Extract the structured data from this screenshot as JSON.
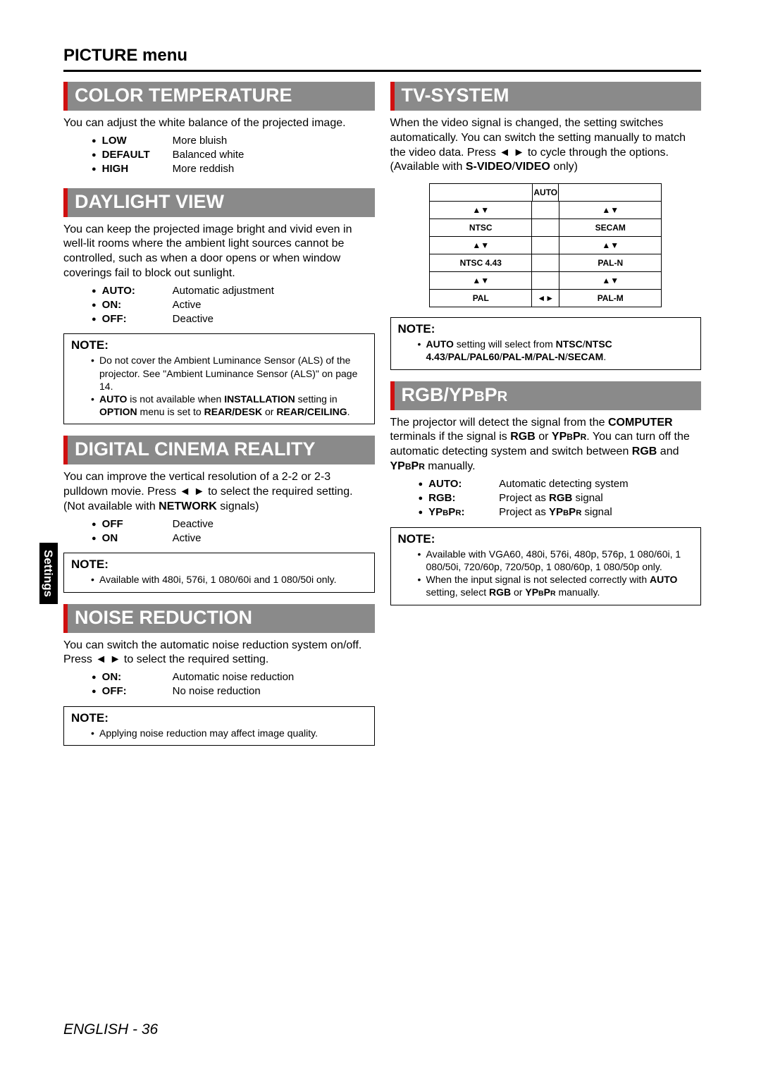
{
  "page_title": "PICTURE menu",
  "sidebar_label": "Settings",
  "footer": {
    "lang": "ENGLISH",
    "sep": " - ",
    "page": "36"
  },
  "left": {
    "color_temp": {
      "header": "COLOR TEMPERATURE",
      "desc": "You can adjust the white balance of the projected image.",
      "items": [
        {
          "term": "LOW",
          "desc": "More bluish"
        },
        {
          "term": "DEFAULT",
          "desc": "Balanced white"
        },
        {
          "term": "HIGH",
          "desc": "More reddish"
        }
      ]
    },
    "daylight": {
      "header": "DAYLIGHT VIEW",
      "desc": "You can keep the projected image bright and vivid even in well-lit rooms where the ambient light sources cannot be controlled, such as when a door opens or when window coverings fail to block out sunlight.",
      "items": [
        {
          "term": "AUTO:",
          "desc": "Automatic adjustment"
        },
        {
          "term": "ON:",
          "desc": "Active"
        },
        {
          "term": "OFF:",
          "desc": "Deactive"
        }
      ],
      "note_title": "NOTE:",
      "notes_html": [
        "Do not cover the Ambient Luminance Sensor (ALS) of the projector. See \"Ambient Luminance Sensor (ALS)\" on page 14.",
        "<b>AUTO</b> is not available when <b>INSTALLATION</b> setting in <b>OPTION</b> menu is set to <b>REAR/DESK</b> or <b>REAR/CEILING</b>."
      ]
    },
    "dcr": {
      "header": "DIGITAL CINEMA REALITY",
      "desc_html": "You can improve the vertical resolution of a 2-2 or 2-3 pulldown movie. Press ◄ ► to select the required setting. (Not available with <b>NETWORK</b> signals)",
      "items": [
        {
          "term": "OFF",
          "desc": "Deactive"
        },
        {
          "term": "ON",
          "desc": "Active"
        }
      ],
      "note_title": "NOTE:",
      "notes": [
        "Available with 480i, 576i, 1 080/60i and 1 080/50i only."
      ]
    },
    "nr": {
      "header": "NOISE REDUCTION",
      "desc": "You can switch the automatic noise reduction system on/off. Press ◄ ► to select the required setting.",
      "items": [
        {
          "term": "ON:",
          "desc": "Automatic noise reduction"
        },
        {
          "term": "OFF:",
          "desc": "No noise reduction"
        }
      ],
      "note_title": "NOTE:",
      "notes": [
        "Applying noise reduction may affect image quality."
      ]
    }
  },
  "right": {
    "tv": {
      "header": "TV-SYSTEM",
      "desc_html": "When the video signal is changed, the setting switches automatically. You can switch the setting manually to match the video data. Press ◄ ► to cycle through the options. (Available with <b>S-VIDEO</b>/<b>VIDEO</b> only)",
      "diagram": {
        "top": "AUTO",
        "left": [
          "NTSC",
          "NTSC 4.43",
          "PAL"
        ],
        "right": [
          "SECAM",
          "PAL-N",
          "PAL-M"
        ],
        "ud": "▲▼",
        "lr": "◄►"
      },
      "note_title": "NOTE:",
      "notes_html": [
        "<b>AUTO</b> setting will select from <b>NTSC</b>/<b>NTSC 4.43</b>/<b>PAL</b>/<b>PAL60</b>/<b>PAL-M</b>/<b>PAL-N</b>/<b>SECAM</b>."
      ]
    },
    "rgb": {
      "header_html": "RGB/YP<span class=\"sc-small\">B</span>P<span class=\"sc-small\">R</span>",
      "desc_html": "The projector will detect the signal from the <b>COMPUTER</b> terminals if the signal is <b>RGB</b> or <b>YP<span class=\"sc-small\">B</span>P<span class=\"sc-small\">R</span></b>. You can turn off the automatic detecting system and switch between <b>RGB</b> and <b>YP<span class=\"sc-small\">B</span>P<span class=\"sc-small\">R</span></b> manually.",
      "items_html": [
        {
          "term": "AUTO:",
          "desc": "Automatic detecting system"
        },
        {
          "term": "RGB:",
          "desc": "Project as <b>RGB</b> signal"
        },
        {
          "term": "YP<span class=\"sc-small\">B</span>P<span class=\"sc-small\">R</span>:",
          "desc": "Project as <b>YP<span class=\"sc-small\">B</span>P<span class=\"sc-small\">R</span></b> signal"
        }
      ],
      "note_title": "NOTE:",
      "notes_html": [
        "Available with VGA60, 480i, 576i, 480p, 576p, 1 080/60i, 1 080/50i, 720/60p, 720/50p, 1 080/60p, 1 080/50p only.",
        "When the input signal is not selected correctly with <b>AUTO</b> setting, select <b>RGB</b> or <b>YP<span class=\"sc-small\">B</span>P<span class=\"sc-small\">R</span></b> manually."
      ]
    }
  }
}
